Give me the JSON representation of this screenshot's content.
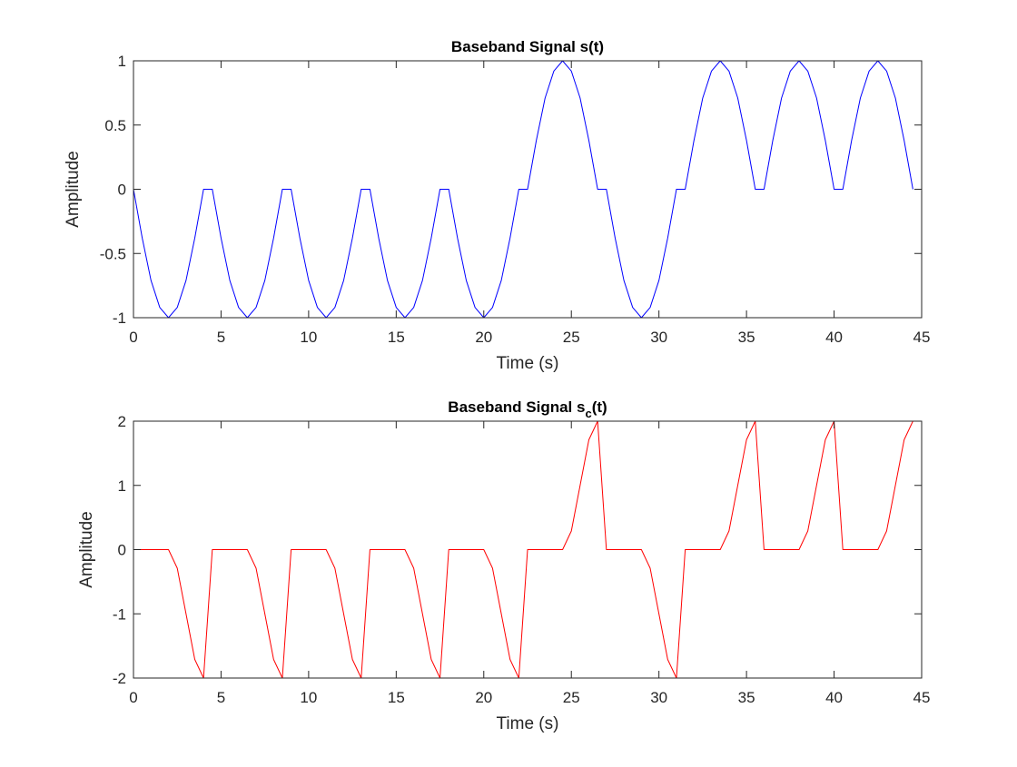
{
  "chart_data": [
    {
      "type": "line",
      "title": {
        "text": "Baseband Signal s(t)"
      },
      "xlabel": "Time (s)",
      "ylabel": "Amplitude",
      "x": [
        0,
        0.5,
        1,
        1.5,
        2,
        2.5,
        3,
        3.5,
        4,
        4.5,
        5,
        5.5,
        6,
        6.5,
        7,
        7.5,
        8,
        8.5,
        9,
        9.5,
        10,
        10.5,
        11,
        11.5,
        12,
        12.5,
        13,
        13.5,
        14,
        14.5,
        15,
        15.5,
        16,
        16.5,
        17,
        17.5,
        18,
        18.5,
        19,
        19.5,
        20,
        20.5,
        21,
        21.5,
        22,
        22.5,
        23,
        23.5,
        24,
        24.5,
        25,
        25.5,
        26,
        26.5,
        27,
        27.5,
        28,
        28.5,
        29,
        29.5,
        30,
        30.5,
        31,
        31.5,
        32,
        32.5,
        33,
        33.5,
        34,
        34.5,
        35,
        35.5,
        36,
        36.5,
        37,
        37.5,
        38,
        38.5,
        39,
        39.5,
        40,
        40.5,
        41,
        41.5,
        42,
        42.5,
        43,
        43.5,
        44,
        44.5
      ],
      "series": [
        {
          "color": "#0000ff",
          "values": [
            0,
            -0.38,
            -0.71,
            -0.92,
            -1,
            -0.92,
            -0.71,
            -0.38,
            0,
            0,
            -0.38,
            -0.71,
            -0.92,
            -1,
            -0.92,
            -0.71,
            -0.38,
            0,
            0,
            -0.38,
            -0.71,
            -0.92,
            -1,
            -0.92,
            -0.71,
            -0.38,
            0,
            0,
            -0.38,
            -0.71,
            -0.92,
            -1,
            -0.92,
            -0.71,
            -0.38,
            0,
            0,
            -0.38,
            -0.71,
            -0.92,
            -1,
            -0.92,
            -0.71,
            -0.38,
            0,
            0,
            0.38,
            0.71,
            0.92,
            1,
            0.92,
            0.71,
            0.38,
            0,
            0,
            -0.38,
            -0.71,
            -0.92,
            -1,
            -0.92,
            -0.71,
            -0.38,
            0,
            0,
            0.38,
            0.71,
            0.92,
            1,
            0.92,
            0.71,
            0.38,
            0,
            0,
            0.38,
            0.71,
            0.92,
            1,
            0.92,
            0.71,
            0.38,
            0,
            0,
            0.38,
            0.71,
            0.92,
            1,
            0.92,
            0.71,
            0.38,
            0
          ]
        }
      ],
      "xlim": [
        0,
        45
      ],
      "xticks": [
        0,
        5,
        10,
        15,
        20,
        25,
        30,
        35,
        40,
        45
      ],
      "ylim": [
        -1,
        1
      ],
      "yticks": [
        -1,
        -0.5,
        0,
        0.5,
        1
      ]
    },
    {
      "type": "line",
      "title": {
        "text": "Baseband Signal s",
        "sub": "c",
        "after": "(t)"
      },
      "xlabel": "Time (s)",
      "ylabel": "Amplitude",
      "x": [
        0,
        0.5,
        1,
        1.5,
        2,
        2.5,
        3,
        3.5,
        4,
        4.5,
        5,
        5.5,
        6,
        6.5,
        7,
        7.5,
        8,
        8.5,
        9,
        9.5,
        10,
        10.5,
        11,
        11.5,
        12,
        12.5,
        13,
        13.5,
        14,
        14.5,
        15,
        15.5,
        16,
        16.5,
        17,
        17.5,
        18,
        18.5,
        19,
        19.5,
        20,
        20.5,
        21,
        21.5,
        22,
        22.5,
        23,
        23.5,
        24,
        24.5,
        25,
        25.5,
        26,
        26.5,
        27,
        27.5,
        28,
        28.5,
        29,
        29.5,
        30,
        30.5,
        31,
        31.5,
        32,
        32.5,
        33,
        33.5,
        34,
        34.5,
        35,
        35.5,
        36,
        36.5,
        37,
        37.5,
        38,
        38.5,
        39,
        39.5,
        40,
        40.5,
        41,
        41.5,
        42,
        42.5,
        43,
        43.5,
        44,
        44.5
      ],
      "series": [
        {
          "color": "#ff0000",
          "values": [
            0,
            0,
            0,
            0,
            0,
            -0.29,
            -1,
            -1.71,
            -2,
            0,
            0,
            0,
            0,
            0,
            -0.29,
            -1,
            -1.71,
            -2,
            0,
            0,
            0,
            0,
            0,
            -0.29,
            -1,
            -1.71,
            -2,
            0,
            0,
            0,
            0,
            0,
            -0.29,
            -1,
            -1.71,
            -2,
            0,
            0,
            0,
            0,
            0,
            -0.29,
            -1,
            -1.71,
            -2,
            0,
            0,
            0,
            0,
            0,
            0.29,
            1,
            1.71,
            2,
            0,
            0,
            0,
            0,
            0,
            -0.29,
            -1,
            -1.71,
            -2,
            0,
            0,
            0,
            0,
            0,
            0.29,
            1,
            1.71,
            2,
            0,
            0,
            0,
            0,
            0,
            0.29,
            1,
            1.71,
            2,
            0,
            0,
            0,
            0,
            0,
            0.29,
            1,
            1.71,
            2
          ]
        }
      ],
      "xlim": [
        0,
        45
      ],
      "xticks": [
        0,
        5,
        10,
        15,
        20,
        25,
        30,
        35,
        40,
        45
      ],
      "ylim": [
        -2,
        2
      ],
      "yticks": [
        -2,
        -1,
        0,
        1,
        2
      ]
    }
  ]
}
